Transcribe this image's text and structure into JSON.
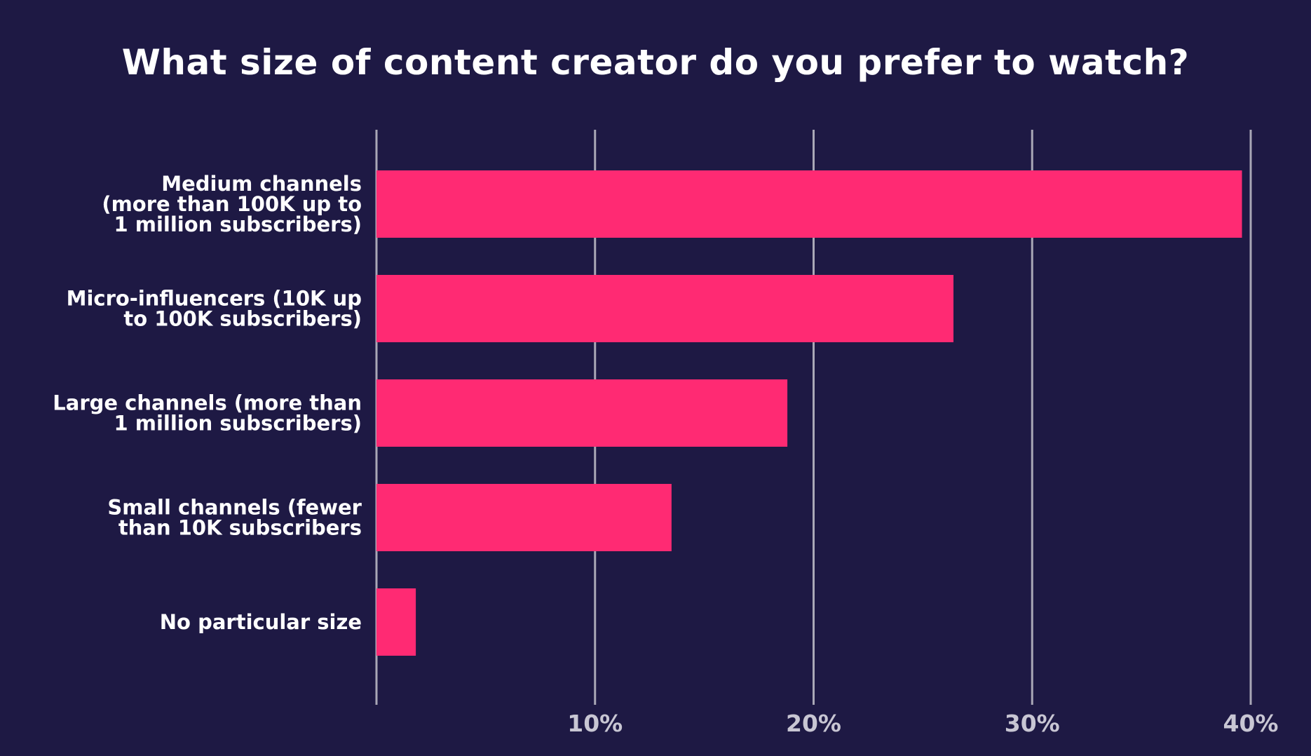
{
  "chart_data": {
    "type": "bar",
    "orientation": "horizontal",
    "title": "What size of content creator do you prefer to watch?",
    "categories": [
      [
        "Medium channels",
        "(more than 100K up to",
        "1 million subscribers)"
      ],
      [
        "Micro-influencers (10K up",
        "to 100K subscribers)"
      ],
      [
        "Large channels (more than",
        "1 million subscribers)"
      ],
      [
        "Small channels (fewer",
        "than 10K subscribers"
      ],
      [
        "No particular size"
      ]
    ],
    "values": [
      39.6,
      26.4,
      18.8,
      13.5,
      1.8
    ],
    "xlim": [
      0,
      40
    ],
    "xticks": [
      10,
      20,
      30,
      40
    ],
    "xtick_labels": [
      "10%",
      "20%",
      "30%",
      "40%"
    ],
    "grid": "vertical",
    "colors": {
      "background": "#1e1944",
      "bar": "#ff2a73",
      "grid": "#a9a7b6",
      "tick_label": "#c8c6d3",
      "text": "#ffffff"
    }
  }
}
